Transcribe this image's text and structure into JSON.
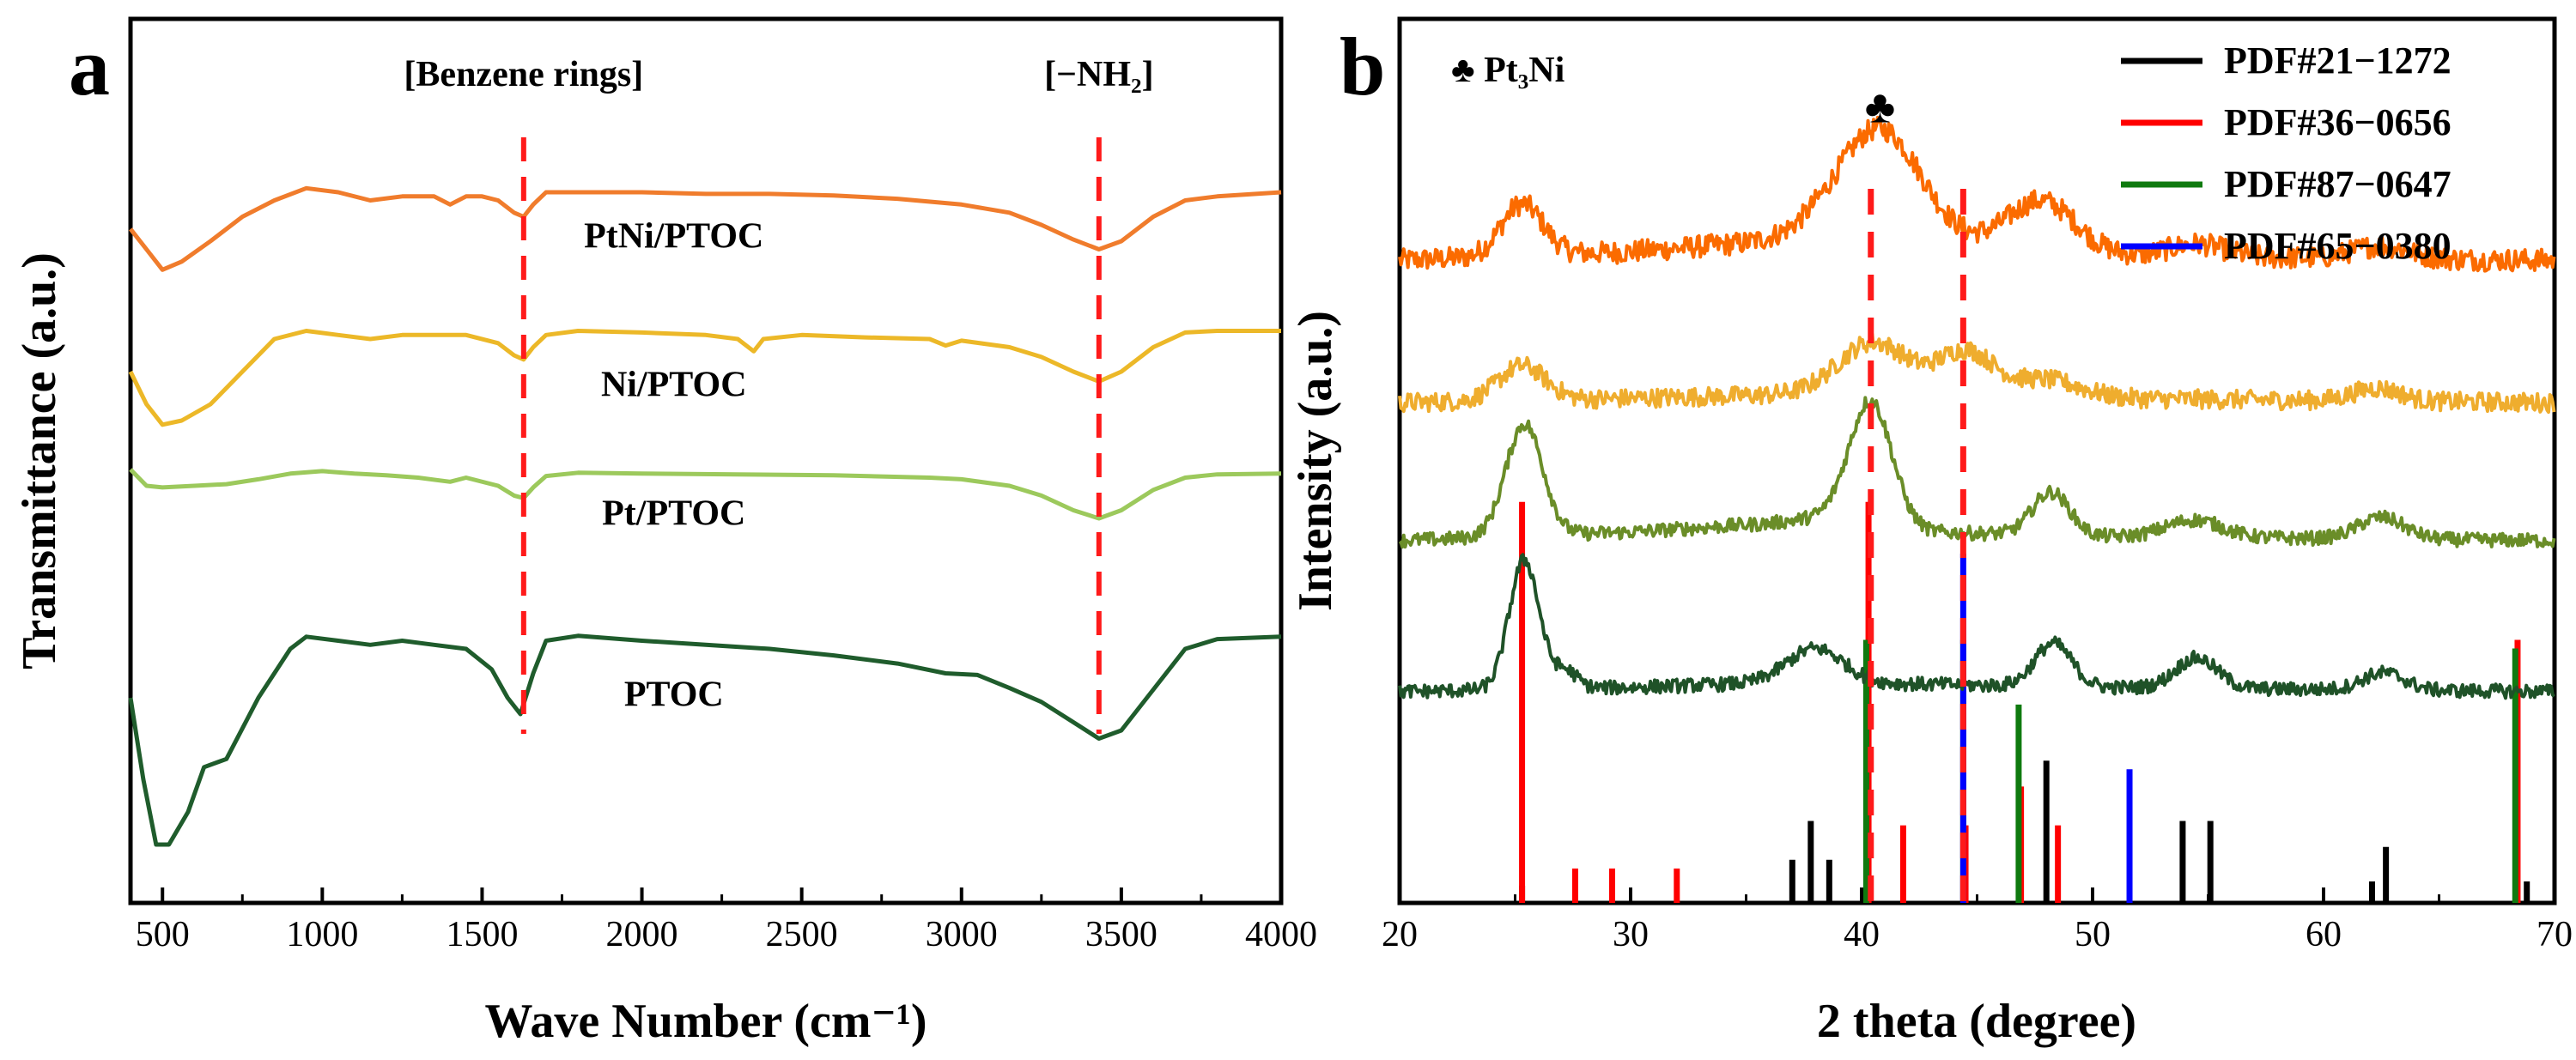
{
  "chart_data": [
    {
      "panel": "a",
      "type": "line",
      "xlabel": "Wave Number (cm⁻¹)",
      "ylabel": "Transmittance (a.u.)",
      "xlim": [
        400,
        4000
      ],
      "ylim": [
        0,
        1
      ],
      "xticks": [
        500,
        1000,
        1500,
        2000,
        2500,
        3000,
        3500,
        4000
      ],
      "yticks_shown": false,
      "annotations": [
        {
          "label": "[Benzene rings]",
          "x": 1630
        },
        {
          "label": "[−NH₂]",
          "x": 3430
        }
      ],
      "series": [
        {
          "name": "PtNi/PTOC",
          "color": "#f07c2c",
          "values": [
            [
              400,
              0.795
            ],
            [
              450,
              0.77
            ],
            [
              500,
              0.745
            ],
            [
              560,
              0.755
            ],
            [
              650,
              0.78
            ],
            [
              750,
              0.81
            ],
            [
              850,
              0.83
            ],
            [
              950,
              0.845
            ],
            [
              1050,
              0.84
            ],
            [
              1150,
              0.83
            ],
            [
              1250,
              0.835
            ],
            [
              1350,
              0.835
            ],
            [
              1400,
              0.825
            ],
            [
              1450,
              0.835
            ],
            [
              1500,
              0.835
            ],
            [
              1550,
              0.83
            ],
            [
              1600,
              0.815
            ],
            [
              1630,
              0.81
            ],
            [
              1660,
              0.825
            ],
            [
              1700,
              0.84
            ],
            [
              1800,
              0.84
            ],
            [
              2000,
              0.84
            ],
            [
              2200,
              0.838
            ],
            [
              2400,
              0.838
            ],
            [
              2600,
              0.836
            ],
            [
              2800,
              0.832
            ],
            [
              3000,
              0.825
            ],
            [
              3150,
              0.815
            ],
            [
              3250,
              0.8
            ],
            [
              3350,
              0.782
            ],
            [
              3430,
              0.77
            ],
            [
              3500,
              0.78
            ],
            [
              3600,
              0.81
            ],
            [
              3700,
              0.83
            ],
            [
              3800,
              0.835
            ],
            [
              4000,
              0.84
            ]
          ]
        },
        {
          "name": "Ni/PTOC",
          "color": "#ecb828",
          "values": [
            [
              400,
              0.62
            ],
            [
              450,
              0.58
            ],
            [
              500,
              0.555
            ],
            [
              560,
              0.56
            ],
            [
              650,
              0.58
            ],
            [
              750,
              0.62
            ],
            [
              850,
              0.66
            ],
            [
              950,
              0.67
            ],
            [
              1050,
              0.665
            ],
            [
              1150,
              0.66
            ],
            [
              1250,
              0.665
            ],
            [
              1350,
              0.665
            ],
            [
              1450,
              0.665
            ],
            [
              1550,
              0.655
            ],
            [
              1600,
              0.64
            ],
            [
              1630,
              0.635
            ],
            [
              1660,
              0.65
            ],
            [
              1700,
              0.665
            ],
            [
              1800,
              0.67
            ],
            [
              2000,
              0.668
            ],
            [
              2200,
              0.665
            ],
            [
              2300,
              0.66
            ],
            [
              2350,
              0.645
            ],
            [
              2380,
              0.66
            ],
            [
              2500,
              0.665
            ],
            [
              2700,
              0.662
            ],
            [
              2900,
              0.66
            ],
            [
              2950,
              0.652
            ],
            [
              3000,
              0.658
            ],
            [
              3150,
              0.65
            ],
            [
              3250,
              0.638
            ],
            [
              3350,
              0.62
            ],
            [
              3430,
              0.608
            ],
            [
              3500,
              0.62
            ],
            [
              3600,
              0.65
            ],
            [
              3700,
              0.668
            ],
            [
              3800,
              0.67
            ],
            [
              4000,
              0.67
            ]
          ]
        },
        {
          "name": "Pt/PTOC",
          "color": "#9cc95c",
          "values": [
            [
              400,
              0.5
            ],
            [
              450,
              0.48
            ],
            [
              500,
              0.478
            ],
            [
              600,
              0.48
            ],
            [
              700,
              0.482
            ],
            [
              800,
              0.488
            ],
            [
              900,
              0.495
            ],
            [
              1000,
              0.498
            ],
            [
              1100,
              0.495
            ],
            [
              1200,
              0.493
            ],
            [
              1300,
              0.49
            ],
            [
              1400,
              0.485
            ],
            [
              1450,
              0.49
            ],
            [
              1550,
              0.48
            ],
            [
              1600,
              0.468
            ],
            [
              1630,
              0.465
            ],
            [
              1660,
              0.478
            ],
            [
              1700,
              0.492
            ],
            [
              1800,
              0.496
            ],
            [
              2000,
              0.495
            ],
            [
              2300,
              0.494
            ],
            [
              2600,
              0.493
            ],
            [
              2900,
              0.49
            ],
            [
              3000,
              0.488
            ],
            [
              3150,
              0.48
            ],
            [
              3250,
              0.468
            ],
            [
              3350,
              0.45
            ],
            [
              3430,
              0.44
            ],
            [
              3500,
              0.45
            ],
            [
              3600,
              0.475
            ],
            [
              3700,
              0.49
            ],
            [
              3800,
              0.494
            ],
            [
              4000,
              0.495
            ]
          ]
        },
        {
          "name": "PTOC",
          "color": "#1f5c2c",
          "values": [
            [
              400,
              0.22
            ],
            [
              440,
              0.12
            ],
            [
              480,
              0.04
            ],
            [
              520,
              0.04
            ],
            [
              580,
              0.08
            ],
            [
              630,
              0.135
            ],
            [
              700,
              0.145
            ],
            [
              800,
              0.22
            ],
            [
              900,
              0.28
            ],
            [
              950,
              0.295
            ],
            [
              1050,
              0.29
            ],
            [
              1150,
              0.285
            ],
            [
              1250,
              0.29
            ],
            [
              1350,
              0.285
            ],
            [
              1450,
              0.28
            ],
            [
              1530,
              0.255
            ],
            [
              1580,
              0.22
            ],
            [
              1620,
              0.2
            ],
            [
              1660,
              0.25
            ],
            [
              1700,
              0.29
            ],
            [
              1800,
              0.296
            ],
            [
              2000,
              0.29
            ],
            [
              2200,
              0.285
            ],
            [
              2400,
              0.28
            ],
            [
              2600,
              0.272
            ],
            [
              2800,
              0.262
            ],
            [
              2950,
              0.25
            ],
            [
              3050,
              0.248
            ],
            [
              3150,
              0.232
            ],
            [
              3250,
              0.215
            ],
            [
              3350,
              0.19
            ],
            [
              3430,
              0.17
            ],
            [
              3500,
              0.18
            ],
            [
              3600,
              0.23
            ],
            [
              3700,
              0.28
            ],
            [
              3800,
              0.292
            ],
            [
              4000,
              0.295
            ]
          ]
        }
      ],
      "series_labels": [
        {
          "name": "PtNi/PTOC",
          "x": 2100,
          "y": 0.772
        },
        {
          "name": "Ni/PTOC",
          "x": 2100,
          "y": 0.59
        },
        {
          "name": "Pt/PTOC",
          "x": 2100,
          "y": 0.432
        },
        {
          "name": "PTOC",
          "x": 2100,
          "y": 0.21
        }
      ]
    },
    {
      "panel": "b",
      "type": "line",
      "xlabel": "2 theta (degree)",
      "ylabel": "Intensity (a.u.)",
      "xlim": [
        20,
        70
      ],
      "ylim": [
        0,
        1
      ],
      "xticks": [
        20,
        30,
        40,
        50,
        60,
        70
      ],
      "yticks_shown": false,
      "annotations": [
        {
          "label": "♣",
          "x": 40.8,
          "y": 0.92
        },
        {
          "label": "♣ Pt₃Ni",
          "position": "top-left"
        }
      ],
      "dashed_lines": [
        40.4,
        44.4
      ],
      "legend": {
        "position": "top-right",
        "entries": [
          {
            "label": "PDF#21−1272",
            "color": "#000000"
          },
          {
            "label": "PDF#36−0656",
            "color": "#ff0000"
          },
          {
            "label": "PDF#87−0647",
            "color": "#0f7a0f"
          },
          {
            "label": "PDF#65−0380",
            "color": "#0000ff"
          }
        ]
      },
      "series": [
        {
          "name": "PtNi/PTOC",
          "color": "#fb6b00",
          "baseline": 0.74,
          "noise": 0.013,
          "peaks": [
            [
              25.3,
              0.06,
              0.9
            ],
            [
              40.8,
              0.13,
              1.8
            ],
            [
              47.8,
              0.06,
              1.5
            ],
            [
              54.5,
              0.015,
              1.2
            ],
            [
              62.5,
              0.015,
              1.2
            ]
          ],
          "background": [
            [
              20,
              0.0
            ],
            [
              30,
              0.01
            ],
            [
              35,
              0.02
            ],
            [
              38,
              0.03
            ],
            [
              42,
              0.02
            ],
            [
              50,
              0.005
            ],
            [
              70,
              0.0
            ]
          ]
        },
        {
          "name": "Ni/PTOC",
          "color": "#efad2e",
          "baseline": 0.575,
          "noise": 0.011,
          "peaks": [
            [
              25.3,
              0.04,
              1.0
            ],
            [
              40.5,
              0.06,
              1.5
            ],
            [
              44.5,
              0.05,
              1.2
            ],
            [
              48.0,
              0.02,
              1.5
            ],
            [
              62.3,
              0.015,
              1.0
            ]
          ],
          "background": [
            [
              20,
              0.0
            ],
            [
              30,
              0.005
            ],
            [
              38,
              0.01
            ],
            [
              42,
              0.01
            ],
            [
              50,
              0.005
            ],
            [
              70,
              0.0
            ]
          ]
        },
        {
          "name": "Pt/PTOC",
          "color": "#6a8d28",
          "baseline": 0.415,
          "noise": 0.008,
          "peaks": [
            [
              25.4,
              0.13,
              0.8
            ],
            [
              40.4,
              0.14,
              0.9
            ],
            [
              48.2,
              0.05,
              0.8
            ],
            [
              54.4,
              0.02,
              1.2
            ],
            [
              62.5,
              0.025,
              1.0
            ]
          ],
          "background": [
            [
              20,
              0.0
            ],
            [
              30,
              0.01
            ],
            [
              36,
              0.02
            ],
            [
              39,
              0.03
            ],
            [
              43,
              0.01
            ],
            [
              50,
              0.005
            ],
            [
              70,
              0.0
            ]
          ]
        },
        {
          "name": "PTOC",
          "color": "#1f5228",
          "baseline": 0.24,
          "noise": 0.008,
          "peaks": [
            [
              25.4,
              0.15,
              0.65
            ],
            [
              27.2,
              0.02,
              0.5
            ],
            [
              38.0,
              0.04,
              1.2
            ],
            [
              48.3,
              0.05,
              0.8
            ],
            [
              54.5,
              0.035,
              0.9
            ],
            [
              62.6,
              0.02,
              0.9
            ]
          ],
          "background": [
            [
              20,
              0.0
            ],
            [
              30,
              0.005
            ],
            [
              36,
              0.01
            ],
            [
              40,
              0.01
            ],
            [
              50,
              0.005
            ],
            [
              70,
              0.0
            ]
          ]
        }
      ],
      "reference_sticks": [
        {
          "name": "PDF#21−1272",
          "color": "#000000",
          "sticks": [
            [
              25.3,
              0.015
            ],
            [
              37.0,
              0.045
            ],
            [
              37.8,
              0.09
            ],
            [
              38.6,
              0.045
            ],
            [
              48.0,
              0.16
            ],
            [
              53.9,
              0.09
            ],
            [
              55.1,
              0.09
            ],
            [
              62.1,
              0.02
            ],
            [
              62.7,
              0.06
            ],
            [
              68.8,
              0.02
            ]
          ]
        },
        {
          "name": "PDF#36−0656",
          "color": "#ff0000",
          "sticks": [
            [
              25.3,
              0.46
            ],
            [
              27.6,
              0.035
            ],
            [
              29.2,
              0.035
            ],
            [
              32.0,
              0.035
            ],
            [
              40.3,
              0.46
            ],
            [
              41.8,
              0.085
            ],
            [
              44.5,
              0.085
            ],
            [
              46.9,
              0.13
            ],
            [
              48.5,
              0.085
            ],
            [
              68.4,
              0.3
            ]
          ]
        },
        {
          "name": "PDF#87−0647",
          "color": "#0f7a0f",
          "sticks": [
            [
              40.2,
              0.3
            ],
            [
              44.4,
              0.3
            ],
            [
              46.8,
              0.225
            ],
            [
              68.3,
              0.29
            ]
          ]
        },
        {
          "name": "PDF#65−0380",
          "color": "#0000ff",
          "sticks": [
            [
              44.4,
              0.4
            ],
            [
              51.6,
              0.15
            ]
          ]
        }
      ]
    }
  ],
  "panels": {
    "a": {
      "letter": "a"
    },
    "b": {
      "letter": "b"
    }
  }
}
